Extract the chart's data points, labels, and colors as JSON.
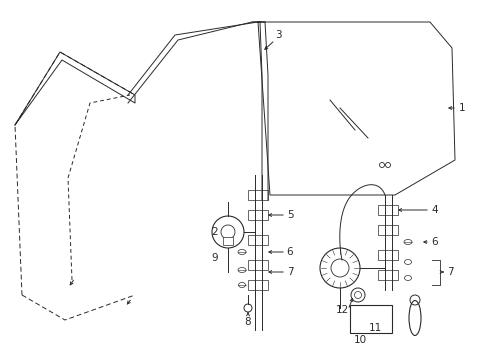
{
  "bg_color": "#ffffff",
  "line_color": "#2a2a2a",
  "fig_width": 4.89,
  "fig_height": 3.6,
  "dpi": 100,
  "lw": 0.7
}
